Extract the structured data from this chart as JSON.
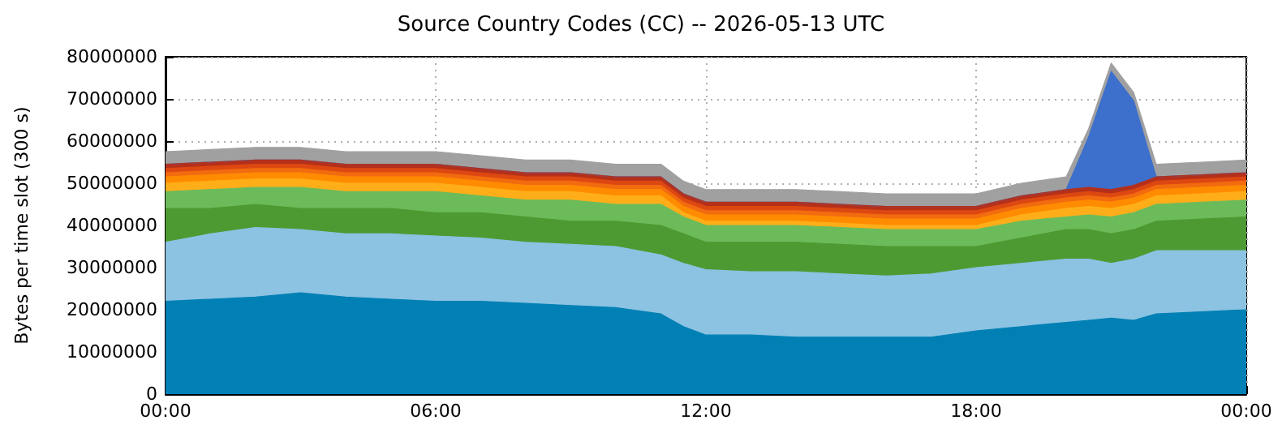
{
  "chart_data": {
    "type": "area",
    "stacked": true,
    "grid": true,
    "line_style": "solid",
    "title": "Source Country Codes (CC) -- 2026-05-13 UTC",
    "ylabel": "Bytes per time slot (300 s)",
    "x": [
      0,
      1,
      2,
      3,
      4,
      5,
      6,
      7,
      8,
      9,
      10,
      11,
      11.5,
      12,
      13,
      14,
      15,
      16,
      17,
      18,
      19,
      20,
      20.5,
      21,
      21.5,
      22,
      23,
      24
    ],
    "xlim": [
      0,
      24
    ],
    "xticks": [
      {
        "value": 0,
        "label": "00:00"
      },
      {
        "value": 6,
        "label": "06:00"
      },
      {
        "value": 12,
        "label": "12:00"
      },
      {
        "value": 18,
        "label": "18:00"
      },
      {
        "value": 24,
        "label": "00:00"
      }
    ],
    "ylim": [
      0,
      80000000
    ],
    "yticks": [
      0,
      10000000,
      20000000,
      30000000,
      40000000,
      50000000,
      60000000,
      70000000,
      80000000
    ],
    "series": [
      {
        "color": "#0080b4",
        "values": [
          22000000,
          22500000,
          23000000,
          24000000,
          23000000,
          22500000,
          22000000,
          22000000,
          21500000,
          21000000,
          20500000,
          19000000,
          16000000,
          14000000,
          14000000,
          13500000,
          13500000,
          13500000,
          13500000,
          15000000,
          16000000,
          17000000,
          17500000,
          18000000,
          17500000,
          19000000,
          19500000,
          20000000
        ]
      },
      {
        "color": "#8cc2e2",
        "values": [
          14000000,
          15500000,
          16500000,
          15000000,
          15000000,
          15500000,
          15500000,
          15000000,
          14500000,
          14500000,
          14500000,
          14000000,
          15000000,
          15500000,
          15000000,
          15500000,
          15000000,
          14500000,
          15000000,
          15000000,
          15000000,
          15000000,
          14500000,
          13000000,
          14500000,
          15000000,
          14500000,
          14000000
        ]
      },
      {
        "color": "#4e9a32",
        "values": [
          8000000,
          6000000,
          5500000,
          5000000,
          6000000,
          6000000,
          5500000,
          6000000,
          6000000,
          5500000,
          6000000,
          7000000,
          7000000,
          6500000,
          7000000,
          7000000,
          7000000,
          7000000,
          6500000,
          5000000,
          6000000,
          7000000,
          7000000,
          7000000,
          7000000,
          7000000,
          7500000,
          8000000
        ]
      },
      {
        "color": "#6cbb5a",
        "values": [
          4000000,
          4500000,
          4000000,
          5000000,
          4000000,
          4000000,
          5000000,
          4000000,
          4000000,
          5000000,
          4000000,
          5000000,
          4000000,
          4000000,
          4000000,
          4000000,
          4000000,
          4000000,
          4000000,
          4000000,
          4000000,
          3000000,
          3500000,
          4000000,
          4000000,
          4000000,
          4000000,
          4000000
        ]
      },
      {
        "color": "#ffae1a",
        "values": [
          2000000,
          2000000,
          2000000,
          2000000,
          2000000,
          2000000,
          2000000,
          2000000,
          2000000,
          2000000,
          2000000,
          2000000,
          1000000,
          1000000,
          1000000,
          1000000,
          1000000,
          1000000,
          1000000,
          1000000,
          1500000,
          2000000,
          2000000,
          2000000,
          2000000,
          2000000,
          2000000,
          2000000
        ]
      },
      {
        "color": "#ff8c00",
        "values": [
          1500000,
          1500000,
          1500000,
          1500000,
          1500000,
          1500000,
          1500000,
          1500000,
          1500000,
          1500000,
          1500000,
          1500000,
          1500000,
          1500000,
          1500000,
          1500000,
          1500000,
          1500000,
          1500000,
          1500000,
          1500000,
          1500000,
          1500000,
          1500000,
          1500000,
          1500000,
          1500000,
          1500000
        ]
      },
      {
        "color": "#f26b0f",
        "values": [
          1000000,
          1000000,
          1000000,
          1000000,
          1000000,
          1000000,
          1000000,
          1000000,
          1000000,
          1000000,
          1000000,
          1000000,
          1000000,
          1000000,
          1000000,
          1000000,
          1000000,
          1000000,
          1000000,
          1000000,
          1000000,
          1000000,
          1000000,
          1000000,
          1000000,
          1000000,
          1000000,
          1000000
        ]
      },
      {
        "color": "#dd4812",
        "values": [
          1000000,
          1000000,
          1000000,
          1000000,
          1000000,
          1000000,
          1000000,
          1000000,
          1000000,
          1000000,
          1000000,
          1000000,
          1000000,
          1000000,
          1000000,
          1000000,
          1000000,
          1000000,
          1000000,
          1000000,
          1000000,
          1000000,
          1000000,
          1000000,
          1000000,
          1000000,
          1000000,
          1000000
        ]
      },
      {
        "color": "#b5301a",
        "values": [
          1000000,
          1000000,
          1000000,
          1000000,
          1000000,
          1000000,
          1000000,
          1000000,
          1000000,
          1000000,
          1000000,
          1000000,
          1000000,
          1000000,
          1000000,
          1000000,
          1000000,
          1000000,
          1000000,
          1000000,
          1000000,
          1000000,
          1000000,
          1000000,
          1000000,
          1000000,
          1000000,
          1000000
        ]
      },
      {
        "color": "#3d6fcc",
        "values": [
          0,
          0,
          0,
          0,
          0,
          0,
          0,
          0,
          0,
          0,
          0,
          0,
          0,
          0,
          0,
          0,
          0,
          0,
          0,
          0,
          0,
          0,
          12000000,
          28000000,
          20000000,
          0,
          0,
          0
        ]
      },
      {
        "color": "#a0a0a0",
        "values": [
          3000000,
          3000000,
          3000000,
          3000000,
          3000000,
          3000000,
          3000000,
          3000000,
          3000000,
          3000000,
          3000000,
          3000000,
          3000000,
          3000000,
          3000000,
          3000000,
          3000000,
          3000000,
          3000000,
          3000000,
          3000000,
          3000000,
          2000000,
          2000000,
          2000000,
          3000000,
          3000000,
          3000000
        ]
      }
    ]
  }
}
